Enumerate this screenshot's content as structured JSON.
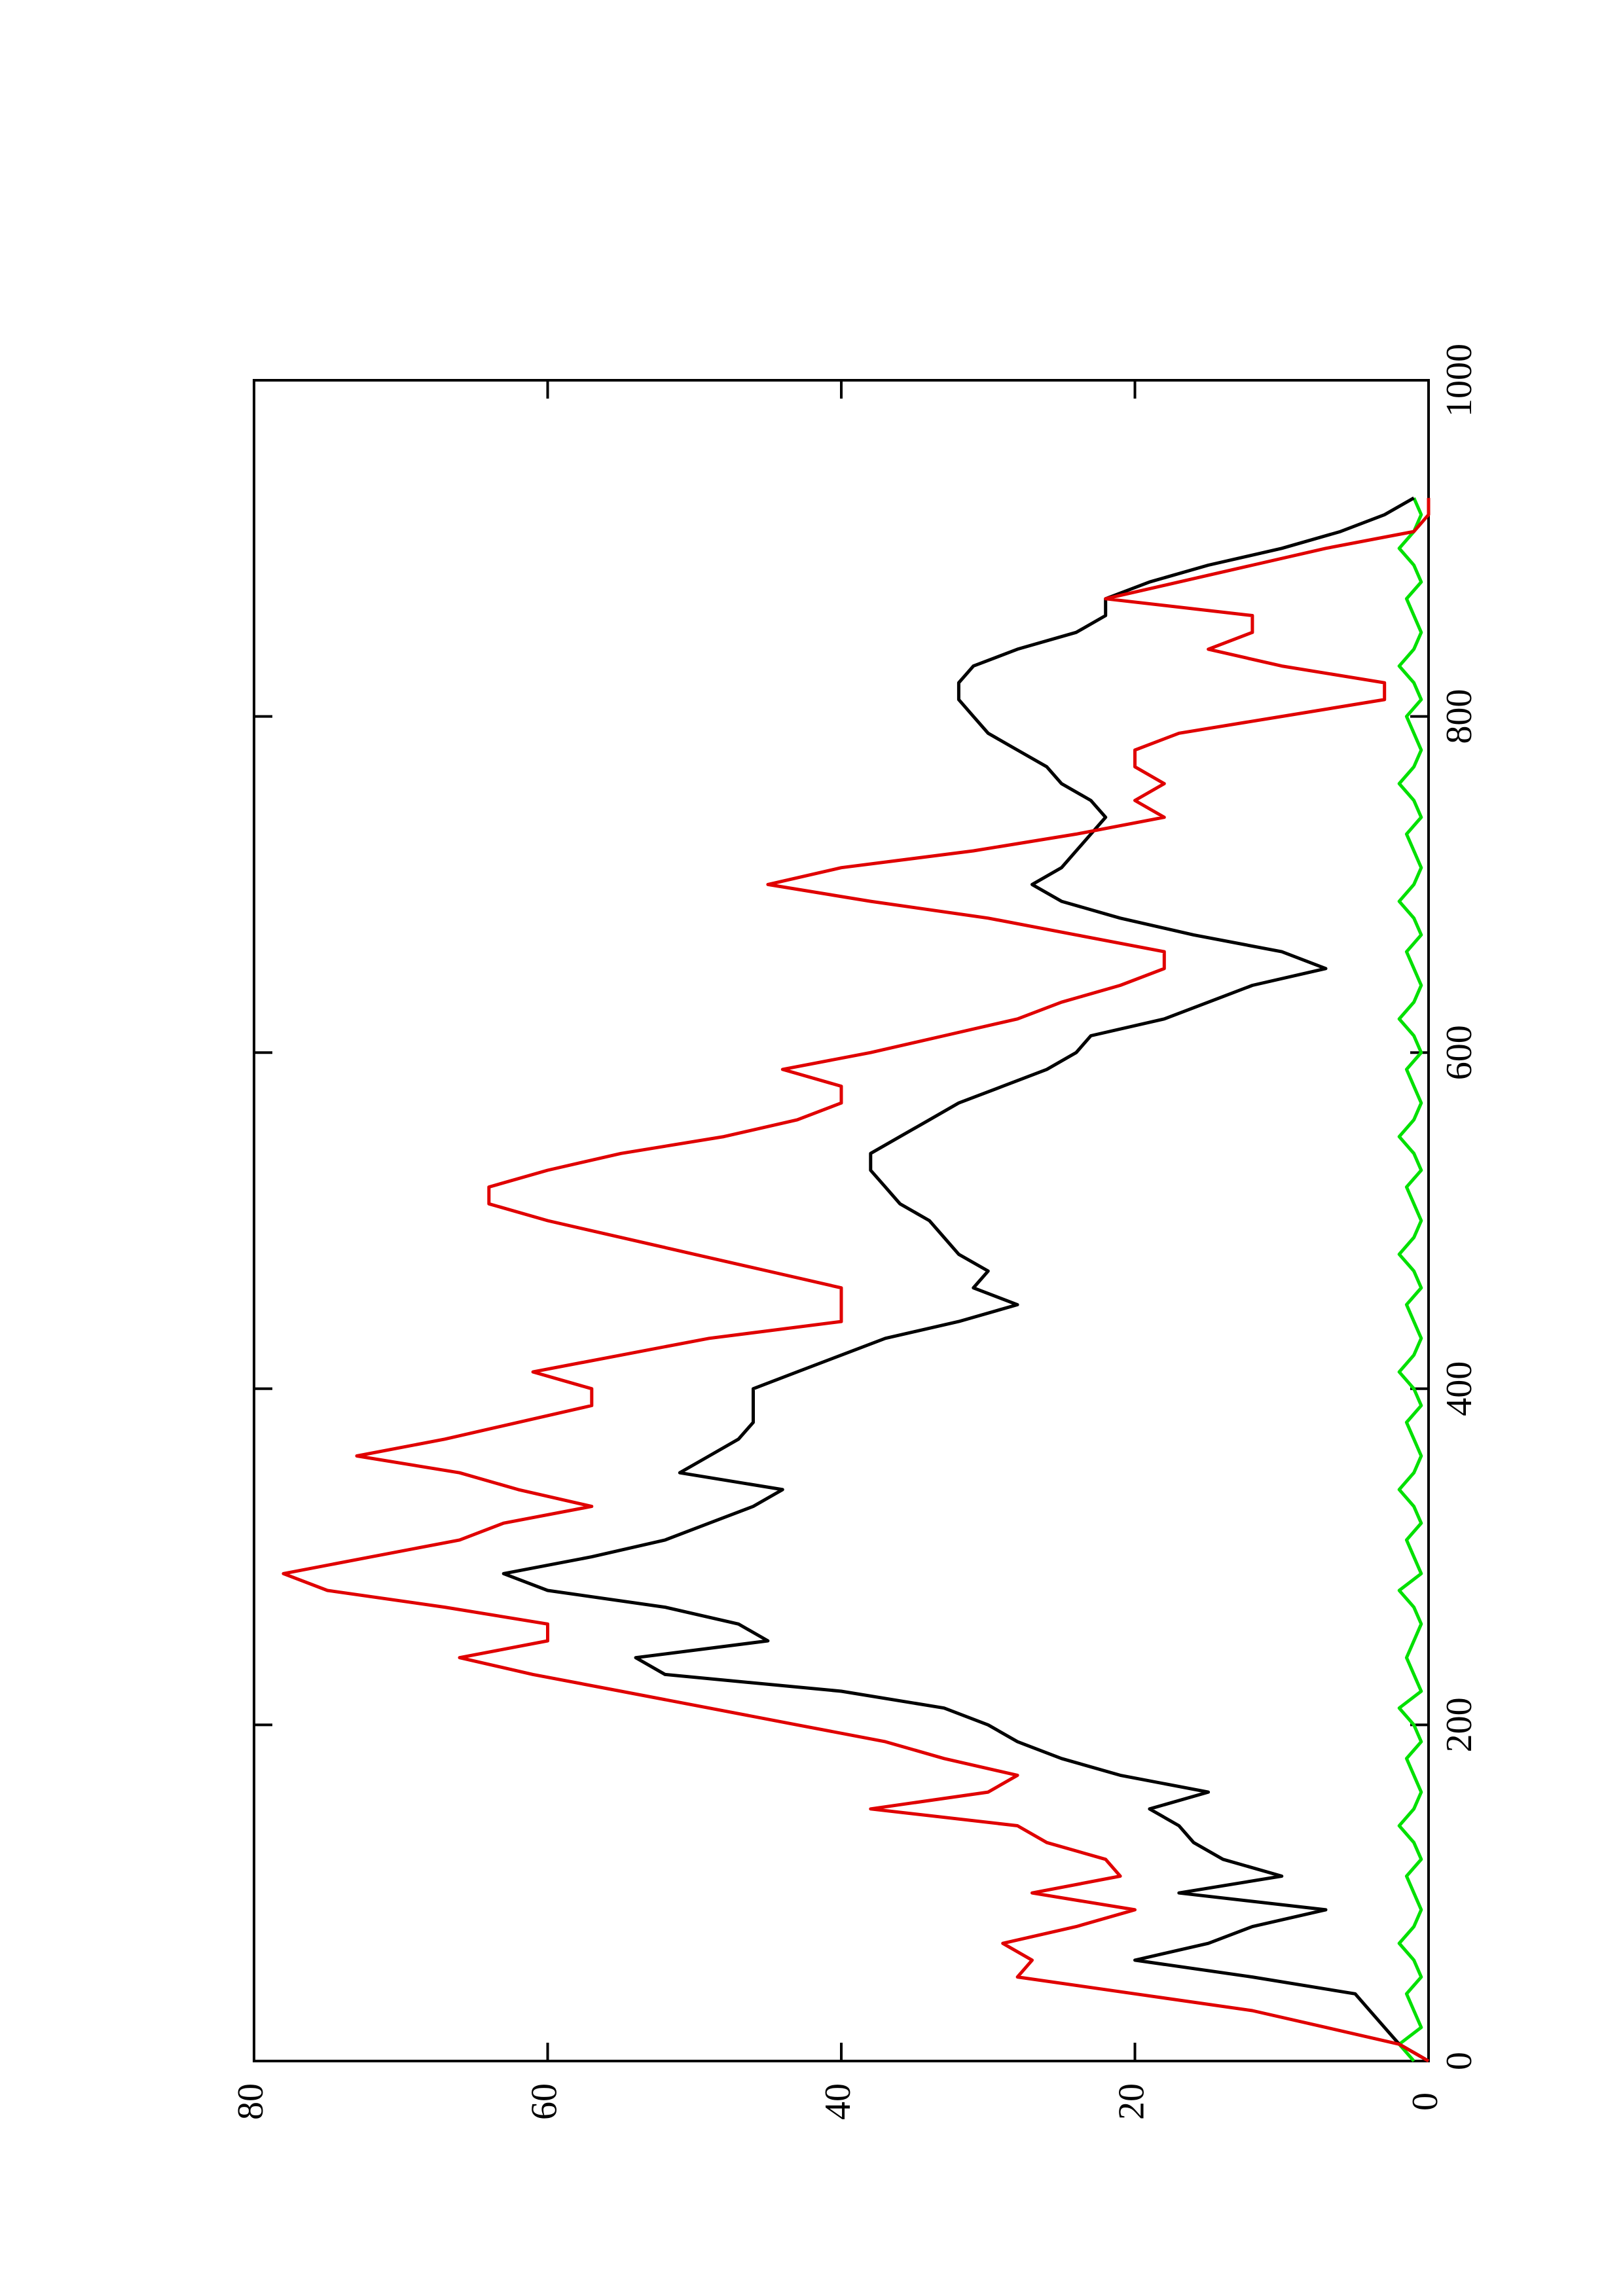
{
  "chart_data": {
    "type": "line",
    "x": [
      0,
      10,
      20,
      30,
      40,
      50,
      60,
      70,
      80,
      90,
      100,
      110,
      120,
      130,
      140,
      150,
      160,
      170,
      180,
      190,
      200,
      210,
      220,
      230,
      240,
      250,
      260,
      270,
      280,
      290,
      300,
      310,
      320,
      330,
      340,
      350,
      360,
      370,
      380,
      390,
      400,
      410,
      420,
      430,
      440,
      450,
      460,
      470,
      480,
      490,
      500,
      510,
      520,
      530,
      540,
      550,
      560,
      570,
      580,
      590,
      600,
      610,
      620,
      630,
      640,
      650,
      660,
      670,
      680,
      690,
      700,
      710,
      720,
      730,
      740,
      750,
      760,
      770,
      780,
      790,
      800,
      810,
      820,
      830,
      840,
      850,
      860,
      870,
      880,
      890,
      900,
      910,
      920,
      930
    ],
    "series": [
      {
        "color": "#000000",
        "values": [
          0,
          2,
          3,
          4,
          5,
          12,
          20,
          15,
          12,
          7,
          17,
          10,
          14,
          16,
          17,
          19,
          15,
          21,
          25,
          28,
          30,
          33,
          40,
          52,
          54,
          45,
          47,
          52,
          60,
          63,
          57,
          52,
          49,
          46,
          44,
          51,
          49,
          47,
          46,
          46,
          46,
          43,
          40,
          37,
          32,
          28,
          31,
          30,
          32,
          33,
          34,
          36,
          37,
          38,
          38,
          36,
          34,
          32,
          29,
          26,
          24,
          23,
          18,
          15,
          12,
          7,
          10,
          16,
          21,
          25,
          27,
          25,
          24,
          23,
          22,
          23,
          25,
          26,
          28,
          30,
          31,
          32,
          32,
          31,
          28,
          24,
          22,
          22,
          19,
          15,
          10,
          6,
          3,
          1
        ]
      },
      {
        "color": "#e00000",
        "values": [
          0,
          2,
          7,
          12,
          20,
          28,
          27,
          29,
          24,
          20,
          27,
          21,
          22,
          26,
          28,
          38,
          30,
          28,
          33,
          37,
          43,
          49,
          55,
          61,
          66,
          60,
          60,
          67,
          75,
          78,
          72,
          66,
          63,
          57,
          62,
          66,
          73,
          67,
          62,
          57,
          57,
          61,
          55,
          49,
          40,
          40,
          40,
          45,
          50,
          55,
          60,
          64,
          64,
          60,
          55,
          48,
          43,
          40,
          40,
          44,
          38,
          33,
          28,
          25,
          21,
          18,
          18,
          24,
          30,
          38,
          45,
          40,
          31,
          24,
          18,
          20,
          18,
          20,
          20,
          17,
          10,
          3,
          3,
          10,
          15,
          12,
          12,
          22,
          17,
          12,
          7,
          1,
          0,
          0
        ]
      },
      {
        "color": "#00e000",
        "values": [
          1,
          2,
          0.5,
          1,
          1.5,
          0.5,
          1,
          2,
          1,
          0.5,
          1,
          1.5,
          0.5,
          1,
          2,
          1,
          0.5,
          1,
          1.5,
          0.5,
          1,
          2,
          0.5,
          1,
          1.5,
          1,
          0.5,
          1,
          2,
          0.5,
          1,
          1.5,
          0.5,
          1,
          2,
          1,
          0.5,
          1,
          1.5,
          0.5,
          1,
          2,
          1,
          0.5,
          1,
          1.5,
          0.5,
          1,
          2,
          1,
          0.5,
          1,
          1.5,
          0.5,
          1,
          2,
          1,
          0.5,
          1,
          1.5,
          0.5,
          1,
          2,
          1,
          0.5,
          1,
          1.5,
          0.5,
          1,
          2,
          1,
          0.5,
          1,
          1.5,
          0.5,
          1,
          2,
          1,
          0.5,
          1,
          1.5,
          0.5,
          1,
          2,
          1,
          0.5,
          1,
          1.5,
          0.5,
          1,
          2,
          1,
          0.5,
          1
        ]
      }
    ],
    "xlim": [
      0,
      1000
    ],
    "xticks": [
      0,
      200,
      400,
      600,
      800,
      1000
    ],
    "ylim": [
      0,
      80
    ],
    "yticks": [
      0,
      20,
      40,
      60,
      80
    ]
  }
}
